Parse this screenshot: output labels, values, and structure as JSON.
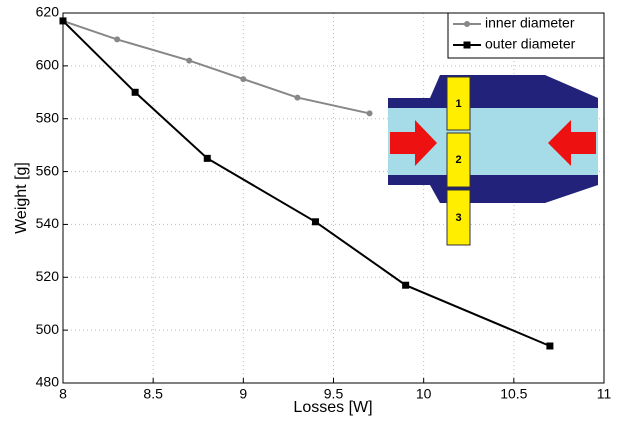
{
  "chart_data": {
    "type": "line",
    "x_label": "Losses [W]",
    "y_label": "Weight [g]",
    "xlim": [
      8,
      11
    ],
    "ylim": [
      480,
      620
    ],
    "xticks": [
      8,
      8.5,
      9,
      9.5,
      10,
      10.5,
      11
    ],
    "yticks": [
      480,
      500,
      520,
      540,
      560,
      580,
      600,
      620
    ],
    "grid": true,
    "legend": "upper right",
    "series": [
      {
        "name": "inner diameter",
        "color": "#888888",
        "marker": "circle",
        "x": [
          8,
          8.3,
          8.7,
          9,
          9.3,
          9.7
        ],
        "values": [
          617,
          610,
          602,
          595,
          588,
          582
        ]
      },
      {
        "name": "outer diameter",
        "color": "#000000",
        "marker": "square",
        "x": [
          8,
          8.4,
          8.8,
          9.4,
          9.9,
          10.7
        ],
        "values": [
          617,
          590,
          565,
          541,
          517,
          494
        ]
      }
    ],
    "inset_labels": [
      "1",
      "2",
      "3"
    ]
  }
}
